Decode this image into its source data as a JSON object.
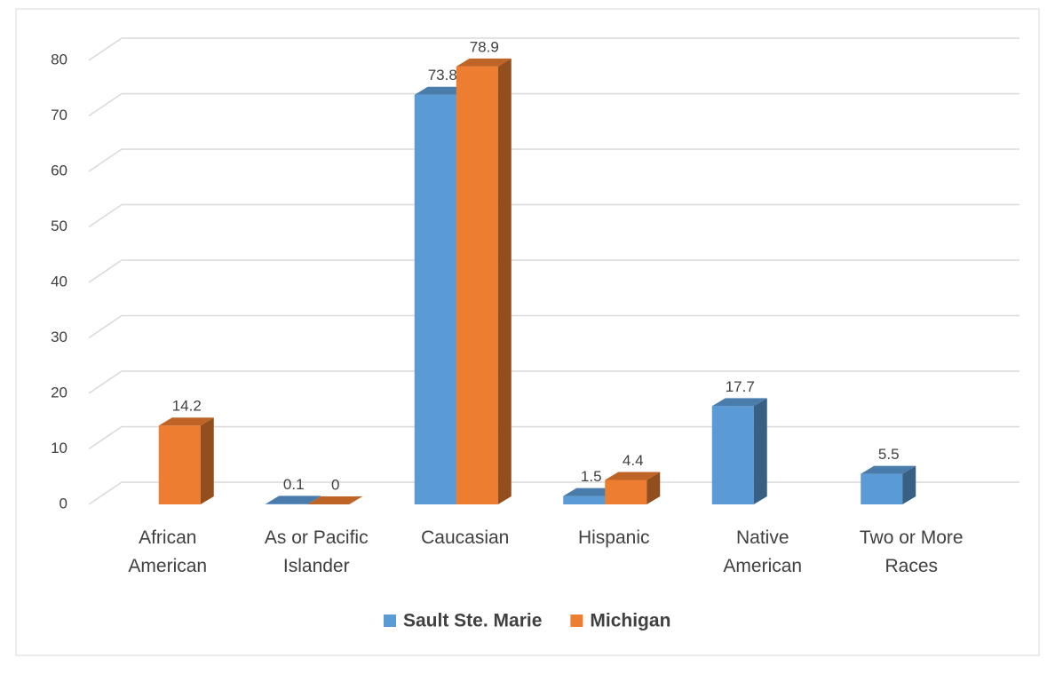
{
  "chart_data": {
    "type": "bar3d",
    "categories": [
      "African American",
      "As or Pacific Islander",
      "Caucasian",
      "Hispanic",
      "Native American",
      "Two or More Races"
    ],
    "series": [
      {
        "name": "Sault Ste. Marie",
        "color": "#5b9bd5",
        "values": [
          null,
          0.1,
          73.8,
          1.5,
          17.7,
          5.5
        ]
      },
      {
        "name": "Michigan",
        "color": "#ed7d31",
        "values": [
          14.2,
          0,
          78.9,
          4.4,
          null,
          null
        ]
      }
    ],
    "ylim": [
      0,
      80
    ],
    "yticks": [
      0,
      10,
      20,
      30,
      40,
      50,
      60,
      70,
      80
    ],
    "grid": true,
    "legend": "bottom"
  }
}
